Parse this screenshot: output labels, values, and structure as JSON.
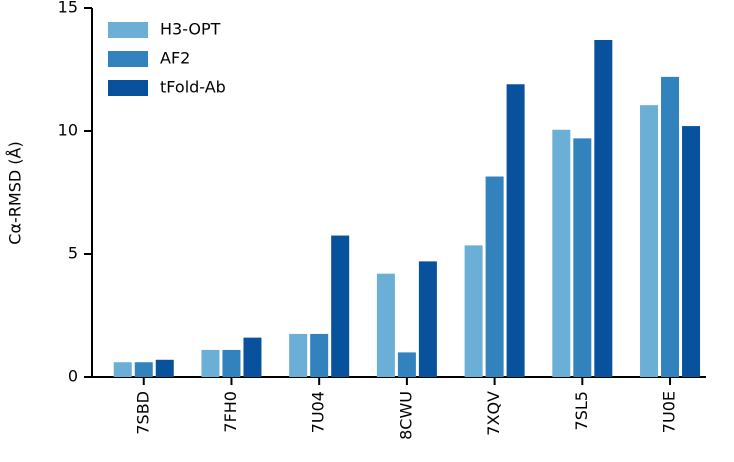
{
  "chart_data": {
    "type": "bar",
    "ylabel": "Cα-RMSD (Å)",
    "categories": [
      "7SBD",
      "7FH0",
      "7U04",
      "8CWU",
      "7XQV",
      "7SL5",
      "7U0E"
    ],
    "series": [
      {
        "name": "H3-OPT",
        "color": "#6baed6",
        "values": [
          0.6,
          1.1,
          1.75,
          4.2,
          5.35,
          10.05,
          11.05
        ]
      },
      {
        "name": "AF2",
        "color": "#3182bd",
        "values": [
          0.6,
          1.1,
          1.75,
          1.0,
          8.15,
          9.7,
          12.2
        ]
      },
      {
        "name": "tFold-Ab",
        "color": "#08519c",
        "values": [
          0.7,
          1.6,
          5.75,
          4.7,
          11.9,
          13.7,
          10.2
        ]
      }
    ],
    "ylim": [
      0,
      15
    ],
    "yticks": [
      0,
      5,
      10,
      15
    ],
    "legend": "top-left"
  }
}
